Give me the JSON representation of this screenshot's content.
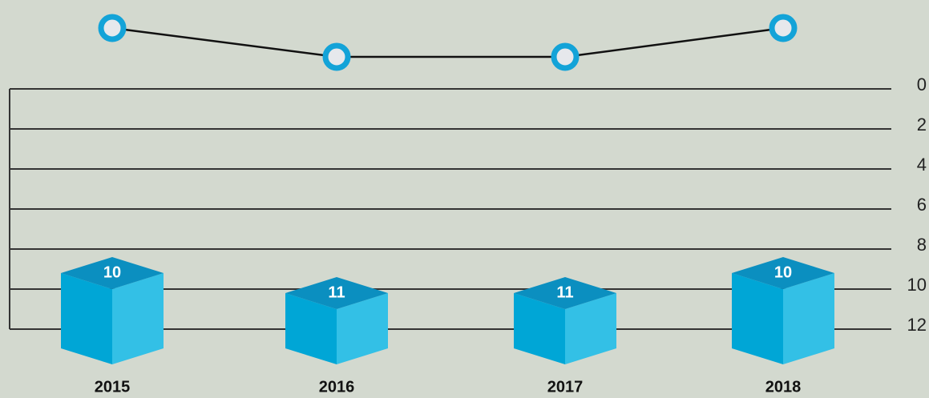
{
  "chart_data": {
    "type": "bar",
    "categories": [
      "2015",
      "2016",
      "2017",
      "2018"
    ],
    "values": [
      10,
      11,
      11,
      10
    ],
    "ylim": [
      0,
      12
    ],
    "y_reversed": true,
    "yticks": [
      0,
      2,
      4,
      6,
      8,
      10,
      12
    ],
    "grid": true,
    "color": "#00a6d6",
    "line_color": "#13a3d8"
  }
}
